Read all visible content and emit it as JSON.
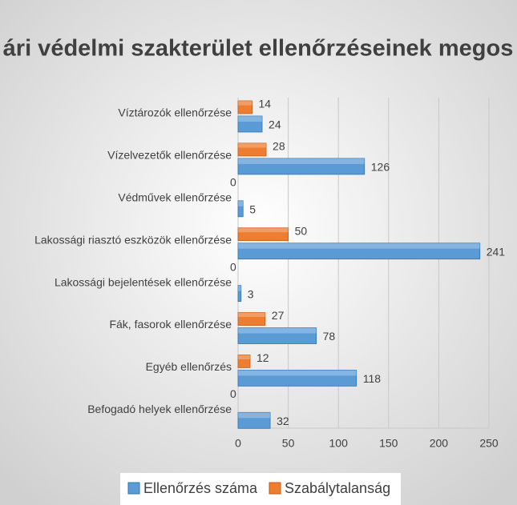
{
  "chart_data": {
    "type": "bar",
    "orientation": "horizontal",
    "title": "ári védelmi szakterület ellenőrzéseinek megos",
    "categories": [
      "Víztározók ellenőrzése",
      "Vízelvezetők ellenőrzése",
      "Védművek ellenőrzése",
      "Lakossági riasztó eszközök ellenőrzése",
      "Lakossági bejelentések ellenőrzése",
      "Fák, fasorok ellenőrzése",
      "Egyéb ellenőrzés",
      "Befogadó helyek ellenőrzése"
    ],
    "series": [
      {
        "name": "Ellenőrzés száma",
        "color": "#5b9bd5",
        "values": [
          24,
          126,
          5,
          241,
          3,
          78,
          118,
          32
        ]
      },
      {
        "name": "Szabálytalanság",
        "color": "#ed7d31",
        "values": [
          14,
          28,
          0,
          50,
          0,
          27,
          12,
          0
        ]
      }
    ],
    "xlim": [
      0,
      250
    ],
    "xticks": [
      0,
      50,
      100,
      150,
      200,
      250
    ],
    "grid": true,
    "legend": "bottom"
  }
}
